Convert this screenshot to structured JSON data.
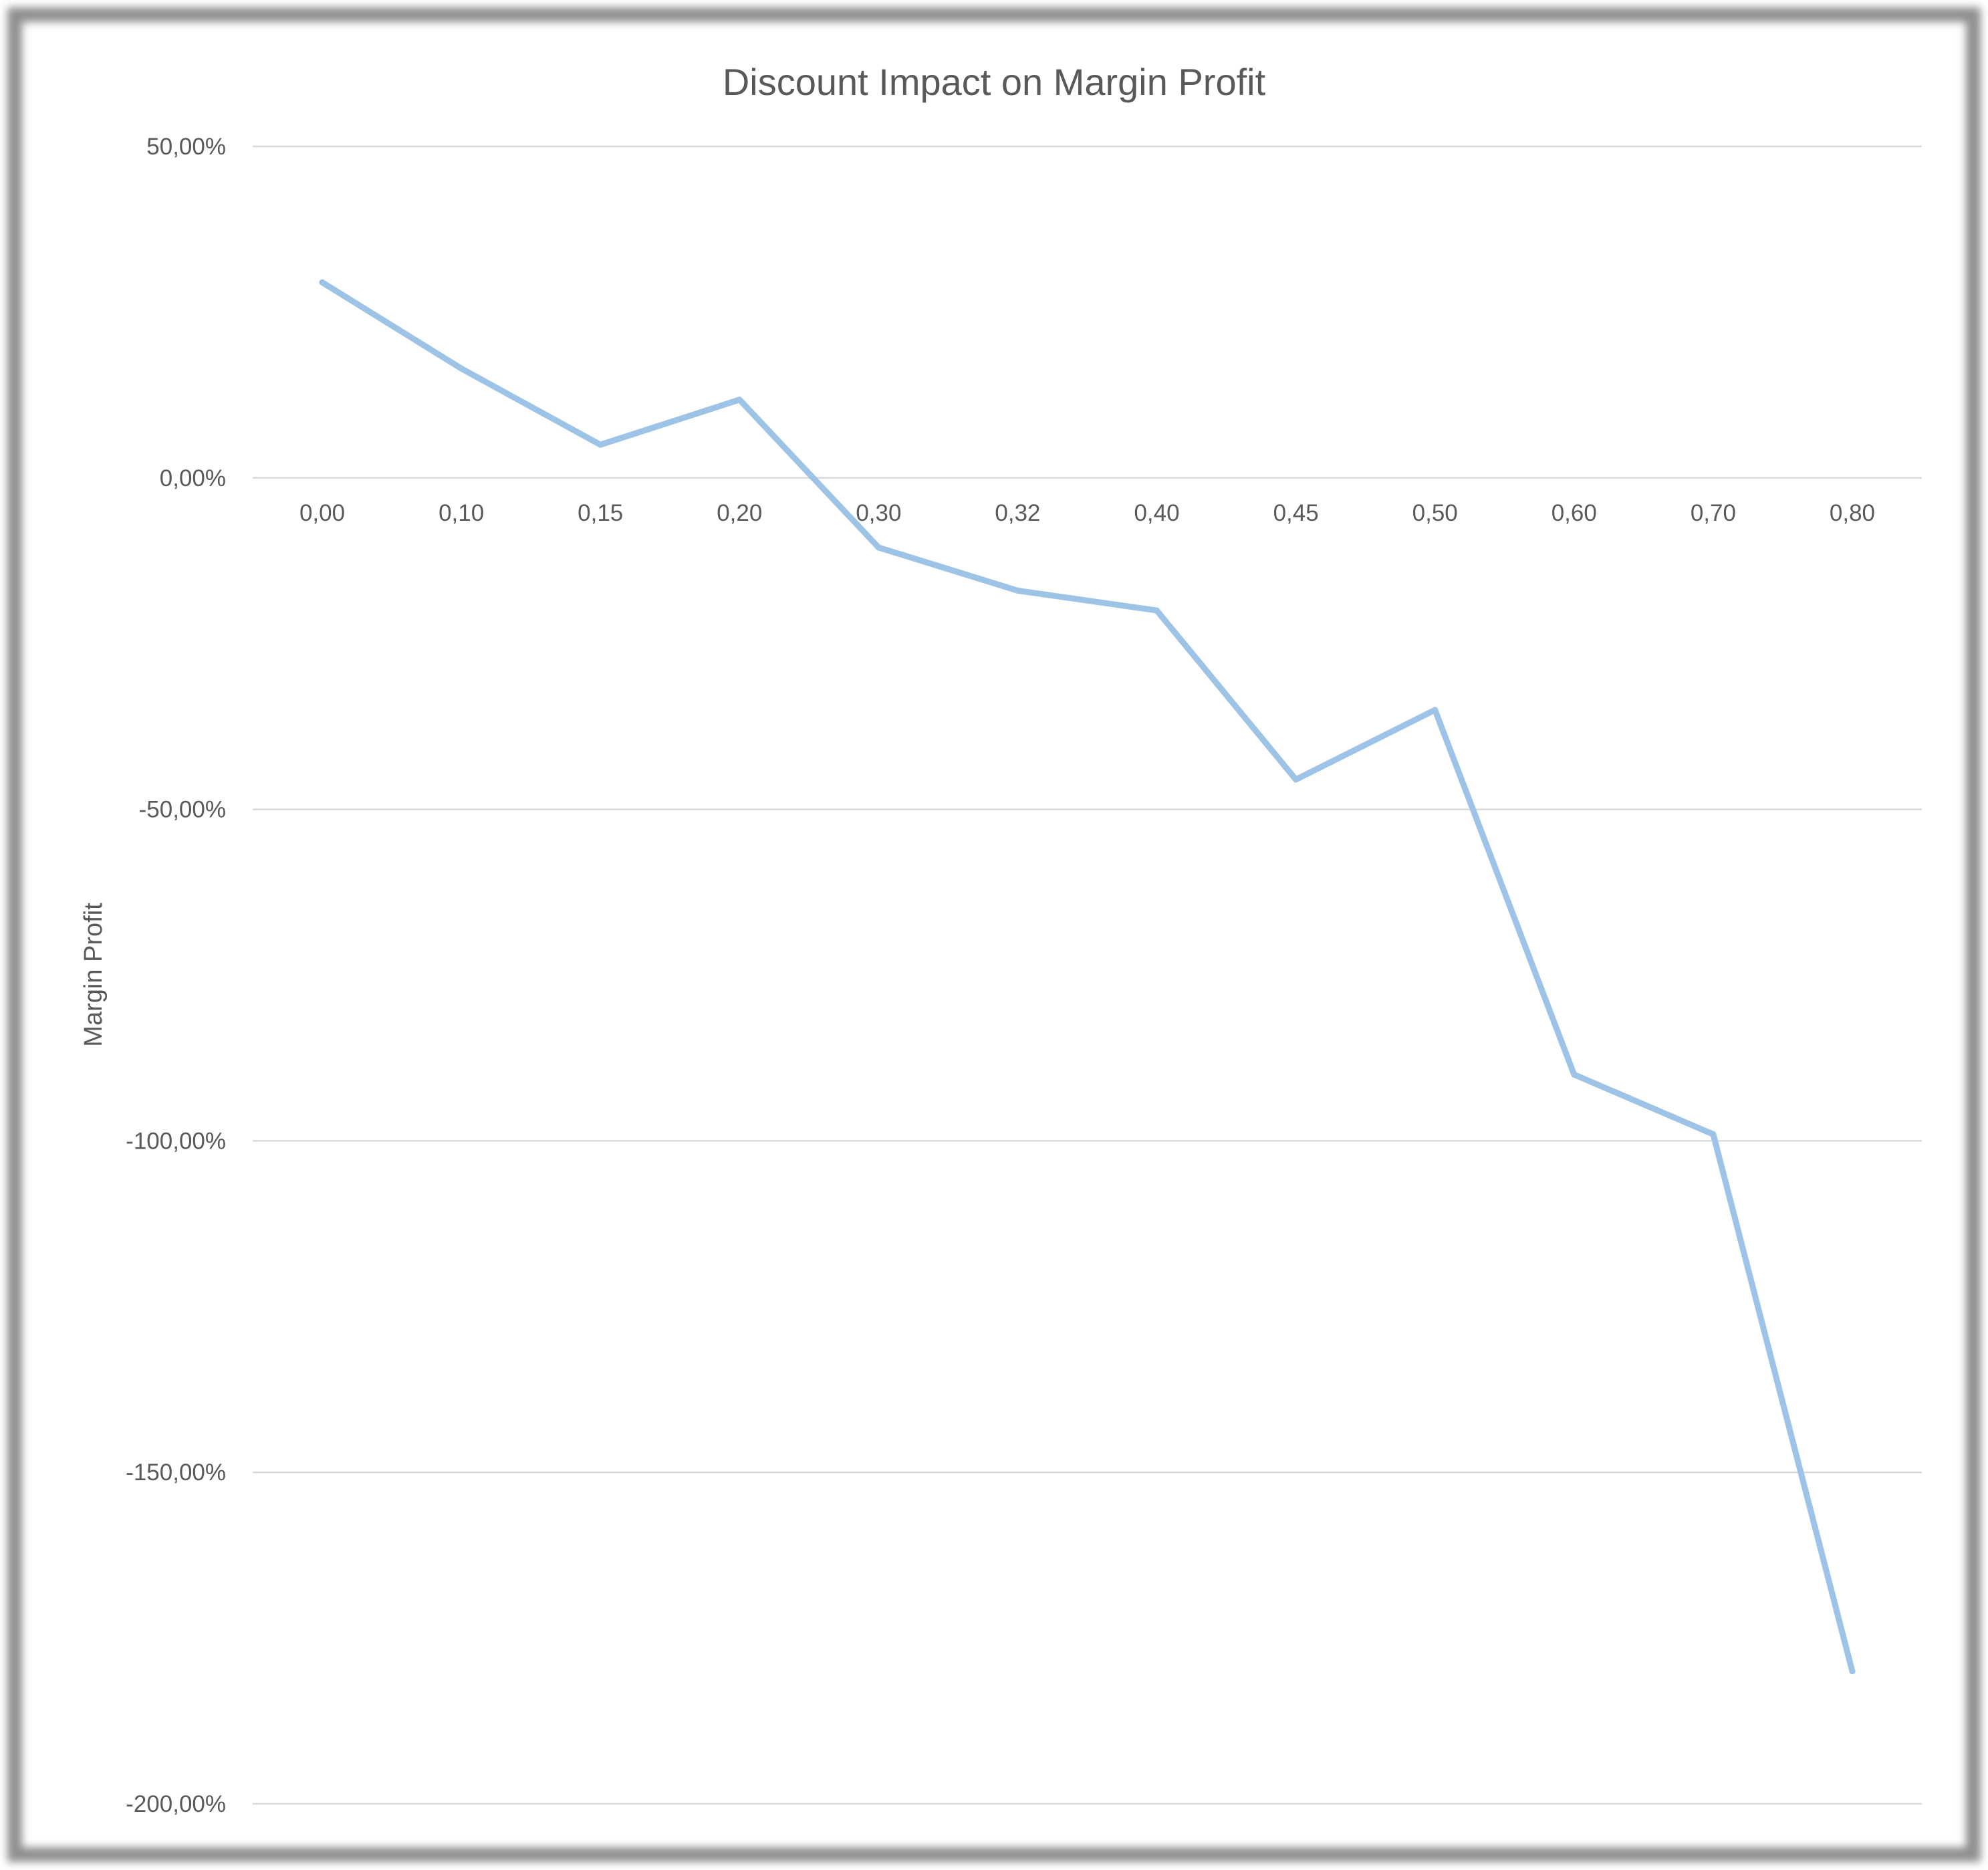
{
  "chart_data": {
    "type": "line",
    "title": "Discount Impact on Margin Profit",
    "xlabel": "",
    "ylabel": "Margin Profit",
    "categories": [
      "0,00",
      "0,10",
      "0,15",
      "0,20",
      "0,30",
      "0,32",
      "0,40",
      "0,45",
      "0,50",
      "0,60",
      "0,70",
      "0,80"
    ],
    "series": [
      {
        "values": [
          29.5,
          16.5,
          5.0,
          11.8,
          -10.5,
          -17.0,
          -20.0,
          -45.5,
          -35.0,
          -90.0,
          -99.0,
          -180.0
        ]
      }
    ],
    "y_ticks": [
      "50,00%",
      "0,00%",
      "-50,00%",
      "-100,00%",
      "-150,00%",
      "-200,00%"
    ],
    "ylim": [
      -200,
      50
    ],
    "y_tick_step": 50,
    "grid": true,
    "legend": "none",
    "colors": {
      "line": "#9dc3e6",
      "grid": "#d9d9d9",
      "text": "#595959",
      "frame": "#9a9a9a"
    }
  }
}
